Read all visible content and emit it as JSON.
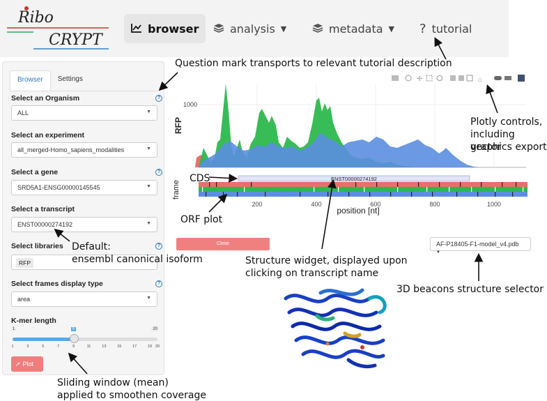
{
  "nav": {
    "logo_text_top": "Ribo",
    "logo_text_bottom": "CRYPT",
    "items": [
      {
        "label": "browser",
        "icon": "line-chart-icon",
        "active": true
      },
      {
        "label": "analysis",
        "icon": "layers-icon",
        "dropdown": true
      },
      {
        "label": "metadata",
        "icon": "layers-icon",
        "dropdown": true
      },
      {
        "label": "tutorial",
        "icon": "question-mark-icon"
      }
    ]
  },
  "sidebar": {
    "tabs": [
      "Browser",
      "Settings"
    ],
    "fields": {
      "organism": {
        "label": "Select an Organism",
        "value": "ALL"
      },
      "experiment": {
        "label": "Select an experiment",
        "value": "all_merged-Homo_sapiens_modalities"
      },
      "gene": {
        "label": "Select a gene",
        "value": "SRD5A1-ENSG00000145545"
      },
      "transcript": {
        "label": "Select a transcript",
        "value": "ENST00000274192"
      },
      "libraries": {
        "label": "Select libraries",
        "value": "RFP"
      },
      "frames": {
        "label": "Select frames display type",
        "value": "area"
      },
      "kmer": {
        "label": "K-mer length",
        "min": "1",
        "max": "20",
        "value": "9",
        "ticks": [
          "1",
          "3",
          "5",
          "7",
          "9",
          "11",
          "13",
          "15",
          "17",
          "19",
          "20"
        ]
      }
    },
    "plot_button": "Plot"
  },
  "plot": {
    "ylabel": "RFP",
    "ytick": "1000",
    "frame_label": "frame",
    "cds_label": "CDS",
    "transcript_label": "ENST00000274192",
    "xlabel": "position [nt]",
    "xticks": [
      "200",
      "400",
      "600",
      "800",
      "1000"
    ],
    "colors": {
      "frame1": "#e8706a",
      "frame2": "#2db84d",
      "frame3": "#5b8ee0"
    }
  },
  "close_button": "Close",
  "structure_select": "AF-P18405-F1-model_v4.pdb",
  "annotations": {
    "question_mark": "Question mark transports to relevant tutorial description",
    "plotly_1": "Plotly controls,",
    "plotly_2": "including vector",
    "plotly_3": "graphics export",
    "cds": "CDS",
    "orf": "ORF plot",
    "default_1": "Default:",
    "default_2": "ensembl canonical isoform",
    "structure_1": "Structure widget, displayed upon",
    "structure_2": "clicking on transcript name",
    "beacons": "3D beacons structure selector",
    "sliding_1": "Sliding window (mean)",
    "sliding_2": "applied to smoothen coverage"
  }
}
